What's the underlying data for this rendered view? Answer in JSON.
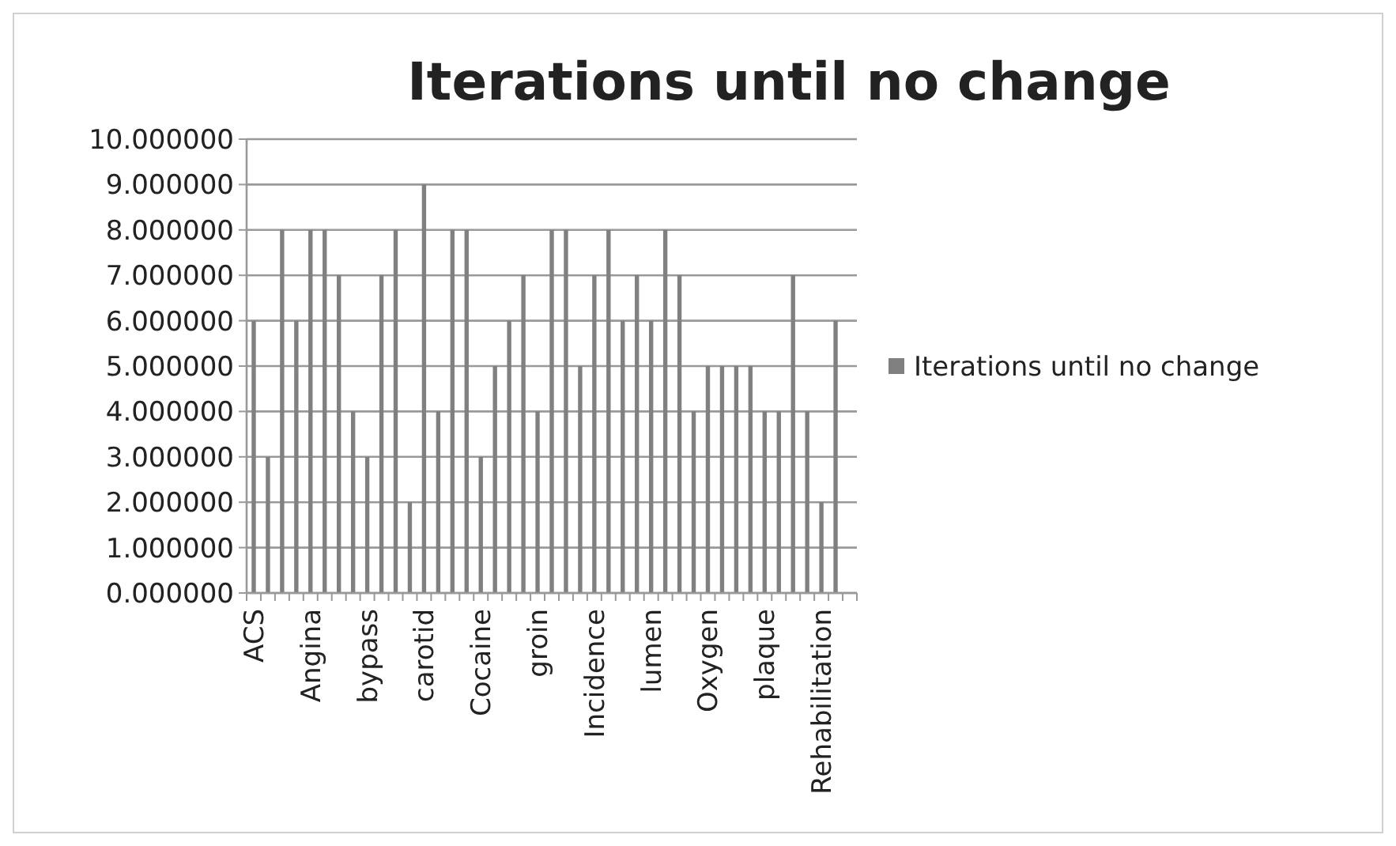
{
  "chart_data": {
    "type": "bar",
    "title": "Iterations until no change",
    "categories": [
      "ACS",
      null,
      null,
      null,
      "Angina",
      null,
      null,
      null,
      "bypass",
      null,
      null,
      null,
      "carotid",
      null,
      null,
      null,
      "Cocaine",
      null,
      null,
      null,
      "groin",
      null,
      null,
      null,
      "Incidence",
      null,
      null,
      null,
      "lumen",
      null,
      null,
      null,
      "Oxygen",
      null,
      null,
      null,
      "plaque",
      null,
      null,
      null,
      "Rehabilitation",
      null,
      null
    ],
    "series": [
      {
        "name": "Iterations until no change",
        "color": "#808080",
        "values": [
          6,
          3,
          8,
          6,
          8,
          8,
          7,
          4,
          3,
          7,
          8,
          2,
          9,
          4,
          8,
          8,
          3,
          5,
          6,
          7,
          4,
          8,
          8,
          5,
          7,
          8,
          6,
          7,
          6,
          8,
          7,
          4,
          5,
          5,
          5,
          5,
          4,
          4,
          7,
          4,
          2,
          6,
          null
        ]
      }
    ],
    "ylim": [
      0,
      10
    ],
    "yticks": [
      {
        "value": 0,
        "label": "0.000000"
      },
      {
        "value": 1,
        "label": "1.000000"
      },
      {
        "value": 2,
        "label": "2.000000"
      },
      {
        "value": 3,
        "label": "3.000000"
      },
      {
        "value": 4,
        "label": "4.000000"
      },
      {
        "value": 5,
        "label": "5.000000"
      },
      {
        "value": 6,
        "label": "6.000000"
      },
      {
        "value": 7,
        "label": "7.000000"
      },
      {
        "value": 8,
        "label": "8.000000"
      },
      {
        "value": 9,
        "label": "9.000000"
      },
      {
        "value": 10,
        "label": "10.000000"
      }
    ],
    "grid": "y",
    "legend": "right"
  }
}
